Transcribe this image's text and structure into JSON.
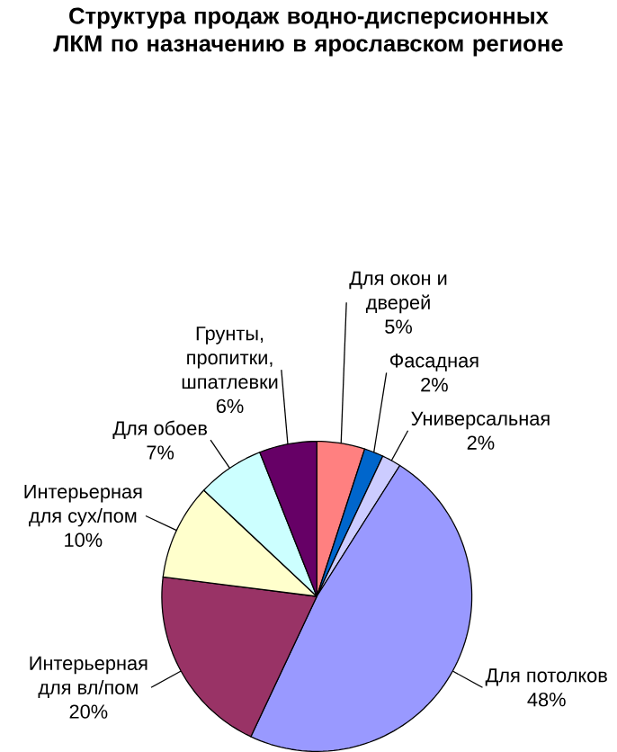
{
  "chart_data": {
    "type": "pie",
    "title": "Структура продаж водно-дисперсионных ЛКМ по назначению в ярославском регионе",
    "categories": [
      "Для окон и дверей",
      "Фасадная",
      "Универсальная",
      "Для потолков",
      "Интерьерная для вл/пом",
      "Интерьерная для сух/пом",
      "Для обоев",
      "Грунты, пропитки, шпатлевки"
    ],
    "values": [
      5,
      2,
      2,
      48,
      20,
      10,
      7,
      6
    ],
    "value_labels": [
      "5%",
      "2%",
      "2%",
      "48%",
      "20%",
      "10%",
      "7%",
      "6%"
    ],
    "colors": [
      "#ff8080",
      "#0066cc",
      "#ccccff",
      "#9999ff",
      "#993366",
      "#ffffcc",
      "#ccffff",
      "#660066"
    ]
  }
}
